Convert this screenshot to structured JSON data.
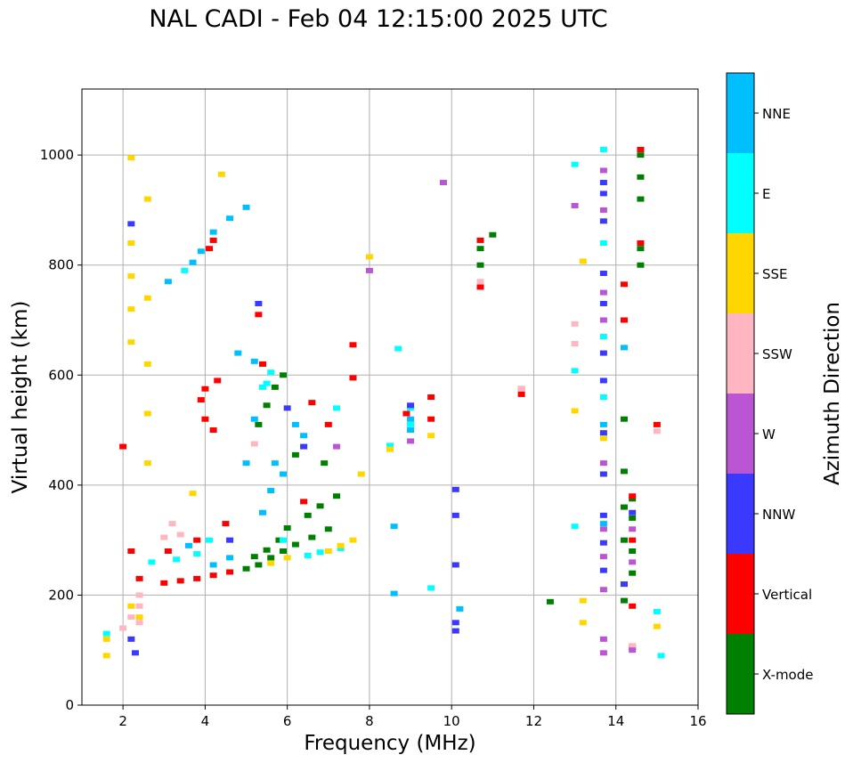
{
  "chart_data": {
    "type": "scatter",
    "title": "NAL CADI - Feb 04 12:15:00 2025 UTC",
    "xlabel": "Frequency (MHz)",
    "ylabel": "Virtual height (km)",
    "xlim": [
      1,
      16
    ],
    "ylim": [
      0,
      1120
    ],
    "xticks": [
      2,
      4,
      6,
      8,
      10,
      12,
      14,
      16
    ],
    "yticks": [
      0,
      200,
      400,
      600,
      800,
      1000
    ],
    "grid": true,
    "colorbar": {
      "label": "Azimuth Direction",
      "categories": [
        {
          "name": "NNE",
          "color": "#00BFFF"
        },
        {
          "name": "E",
          "color": "#00FFFF"
        },
        {
          "name": "SSE",
          "color": "#FFD700"
        },
        {
          "name": "SSW",
          "color": "#FFB6C1"
        },
        {
          "name": "W",
          "color": "#BA55D3"
        },
        {
          "name": "NNW",
          "color": "#3A3AFF"
        },
        {
          "name": "Vertical",
          "color": "#FF0000"
        },
        {
          "name": "X-mode",
          "color": "#008000"
        }
      ]
    },
    "series": [
      {
        "name": "X-mode",
        "points": [
          [
            5.0,
            248
          ],
          [
            5.3,
            255
          ],
          [
            5.6,
            268
          ],
          [
            5.9,
            280
          ],
          [
            6.2,
            292
          ],
          [
            6.6,
            305
          ],
          [
            7.0,
            320
          ],
          [
            6.5,
            345
          ],
          [
            6.8,
            362
          ],
          [
            7.2,
            380
          ],
          [
            5.2,
            270
          ],
          [
            5.5,
            282
          ],
          [
            5.8,
            300
          ],
          [
            6.0,
            322
          ],
          [
            5.3,
            510
          ],
          [
            5.5,
            545
          ],
          [
            5.7,
            578
          ],
          [
            5.9,
            600
          ],
          [
            10.7,
            830
          ],
          [
            10.7,
            800
          ],
          [
            11.0,
            855
          ],
          [
            12.4,
            188
          ],
          [
            14.2,
            190
          ],
          [
            14.2,
            300
          ],
          [
            14.2,
            360
          ],
          [
            14.2,
            425
          ],
          [
            14.2,
            520
          ],
          [
            14.4,
            240
          ],
          [
            14.4,
            280
          ],
          [
            14.4,
            340
          ],
          [
            14.4,
            375
          ],
          [
            14.4,
            105
          ],
          [
            14.6,
            920
          ],
          [
            14.6,
            960
          ],
          [
            14.6,
            1000
          ],
          [
            14.6,
            830
          ],
          [
            14.6,
            800
          ],
          [
            6.2,
            455
          ],
          [
            6.9,
            440
          ]
        ]
      },
      {
        "name": "Vertical",
        "points": [
          [
            3.0,
            222
          ],
          [
            3.4,
            226
          ],
          [
            3.8,
            230
          ],
          [
            4.2,
            236
          ],
          [
            4.6,
            242
          ],
          [
            2.4,
            230
          ],
          [
            2.2,
            280
          ],
          [
            3.1,
            280
          ],
          [
            3.8,
            300
          ],
          [
            4.5,
            330
          ],
          [
            4.2,
            845
          ],
          [
            4.1,
            830
          ],
          [
            3.9,
            555
          ],
          [
            4.0,
            575
          ],
          [
            4.3,
            590
          ],
          [
            4.0,
            520
          ],
          [
            4.2,
            500
          ],
          [
            2.0,
            470
          ],
          [
            5.3,
            710
          ],
          [
            5.4,
            620
          ],
          [
            6.6,
            550
          ],
          [
            7.6,
            655
          ],
          [
            7.6,
            595
          ],
          [
            9.5,
            560
          ],
          [
            9.5,
            520
          ],
          [
            8.9,
            530
          ],
          [
            11.7,
            575
          ],
          [
            11.7,
            565
          ],
          [
            10.7,
            845
          ],
          [
            10.7,
            760
          ],
          [
            14.2,
            765
          ],
          [
            14.2,
            700
          ],
          [
            14.4,
            380
          ],
          [
            14.4,
            300
          ],
          [
            14.4,
            180
          ],
          [
            14.6,
            1010
          ],
          [
            14.6,
            840
          ],
          [
            15.0,
            510
          ],
          [
            6.4,
            370
          ],
          [
            7.0,
            510
          ]
        ]
      },
      {
        "name": "E",
        "points": [
          [
            6.5,
            272
          ],
          [
            6.8,
            278
          ],
          [
            7.3,
            285
          ],
          [
            5.9,
            300
          ],
          [
            4.1,
            300
          ],
          [
            3.3,
            265
          ],
          [
            3.8,
            275
          ],
          [
            2.7,
            260
          ],
          [
            1.6,
            130
          ],
          [
            5.5,
            585
          ],
          [
            5.6,
            605
          ],
          [
            5.4,
            578
          ],
          [
            3.5,
            790
          ],
          [
            8.5,
            472
          ],
          [
            9.0,
            510
          ],
          [
            9.0,
            540
          ],
          [
            13.7,
            1010
          ],
          [
            13.0,
            983
          ],
          [
            13.7,
            840
          ],
          [
            13.7,
            670
          ],
          [
            13.0,
            325
          ],
          [
            13.7,
            560
          ],
          [
            15.0,
            170
          ],
          [
            15.1,
            90
          ],
          [
            8.7,
            648
          ],
          [
            13.0,
            608
          ],
          [
            9.5,
            213
          ],
          [
            7.2,
            540
          ]
        ]
      },
      {
        "name": "NNE",
        "points": [
          [
            3.7,
            805
          ],
          [
            3.9,
            825
          ],
          [
            4.2,
            860
          ],
          [
            4.6,
            885
          ],
          [
            5.0,
            905
          ],
          [
            4.8,
            640
          ],
          [
            5.2,
            625
          ],
          [
            5.0,
            440
          ],
          [
            5.2,
            520
          ],
          [
            5.7,
            440
          ],
          [
            5.9,
            420
          ],
          [
            6.2,
            510
          ],
          [
            5.4,
            350
          ],
          [
            5.6,
            390
          ],
          [
            4.2,
            255
          ],
          [
            4.6,
            268
          ],
          [
            3.6,
            290
          ],
          [
            3.1,
            770
          ],
          [
            9.0,
            500
          ],
          [
            9.0,
            520
          ],
          [
            8.6,
            325
          ],
          [
            8.6,
            203
          ],
          [
            14.2,
            650
          ],
          [
            13.7,
            510
          ],
          [
            13.7,
            330
          ],
          [
            14.2,
            220
          ],
          [
            10.2,
            175
          ],
          [
            6.4,
            490
          ]
        ]
      },
      {
        "name": "SSE",
        "points": [
          [
            7.0,
            280
          ],
          [
            7.3,
            290
          ],
          [
            7.6,
            300
          ],
          [
            5.6,
            258
          ],
          [
            6.0,
            268
          ],
          [
            2.2,
            180
          ],
          [
            2.4,
            160
          ],
          [
            1.6,
            120
          ],
          [
            1.6,
            90
          ],
          [
            2.2,
            995
          ],
          [
            2.2,
            840
          ],
          [
            2.2,
            780
          ],
          [
            2.2,
            720
          ],
          [
            2.2,
            660
          ],
          [
            2.6,
            920
          ],
          [
            2.6,
            740
          ],
          [
            2.6,
            620
          ],
          [
            2.6,
            530
          ],
          [
            2.6,
            440
          ],
          [
            4.4,
            965
          ],
          [
            3.7,
            385
          ],
          [
            8.0,
            815
          ],
          [
            8.5,
            465
          ],
          [
            9.5,
            490
          ],
          [
            13.2,
            807
          ],
          [
            13.2,
            190
          ],
          [
            13.2,
            150
          ],
          [
            13.0,
            535
          ],
          [
            15.0,
            143
          ],
          [
            7.8,
            420
          ],
          [
            13.7,
            485
          ]
        ]
      },
      {
        "name": "SSW",
        "points": [
          [
            2.4,
            200
          ],
          [
            2.4,
            180
          ],
          [
            2.4,
            150
          ],
          [
            2.2,
            160
          ],
          [
            2.0,
            140
          ],
          [
            3.0,
            305
          ],
          [
            3.2,
            330
          ],
          [
            3.4,
            310
          ],
          [
            11.7,
            575
          ],
          [
            13.0,
            693
          ],
          [
            13.0,
            657
          ],
          [
            15.0,
            498
          ],
          [
            14.4,
            108
          ],
          [
            10.7,
            770
          ],
          [
            5.2,
            475
          ]
        ]
      },
      {
        "name": "W",
        "points": [
          [
            8.0,
            790
          ],
          [
            9.0,
            480
          ],
          [
            9.8,
            950
          ],
          [
            13.0,
            908
          ],
          [
            13.7,
            972
          ],
          [
            13.7,
            900
          ],
          [
            13.7,
            750
          ],
          [
            13.7,
            700
          ],
          [
            13.7,
            440
          ],
          [
            13.7,
            320
          ],
          [
            13.7,
            270
          ],
          [
            13.7,
            210
          ],
          [
            13.7,
            120
          ],
          [
            13.7,
            95
          ],
          [
            14.4,
            260
          ],
          [
            14.4,
            320
          ],
          [
            7.2,
            470
          ],
          [
            14.4,
            100
          ]
        ]
      },
      {
        "name": "NNW",
        "points": [
          [
            2.2,
            120
          ],
          [
            2.3,
            95
          ],
          [
            2.2,
            875
          ],
          [
            5.3,
            730
          ],
          [
            6.0,
            540
          ],
          [
            6.4,
            470
          ],
          [
            4.6,
            300
          ],
          [
            10.1,
            392
          ],
          [
            10.1,
            345
          ],
          [
            10.1,
            255
          ],
          [
            10.1,
            150
          ],
          [
            10.1,
            135
          ],
          [
            13.7,
            950
          ],
          [
            13.7,
            930
          ],
          [
            13.7,
            880
          ],
          [
            13.7,
            785
          ],
          [
            13.7,
            730
          ],
          [
            13.7,
            640
          ],
          [
            13.7,
            590
          ],
          [
            13.7,
            495
          ],
          [
            13.7,
            420
          ],
          [
            13.7,
            345
          ],
          [
            13.7,
            295
          ],
          [
            13.7,
            245
          ],
          [
            14.4,
            350
          ],
          [
            14.2,
            220
          ],
          [
            9.0,
            545
          ]
        ]
      }
    ]
  }
}
